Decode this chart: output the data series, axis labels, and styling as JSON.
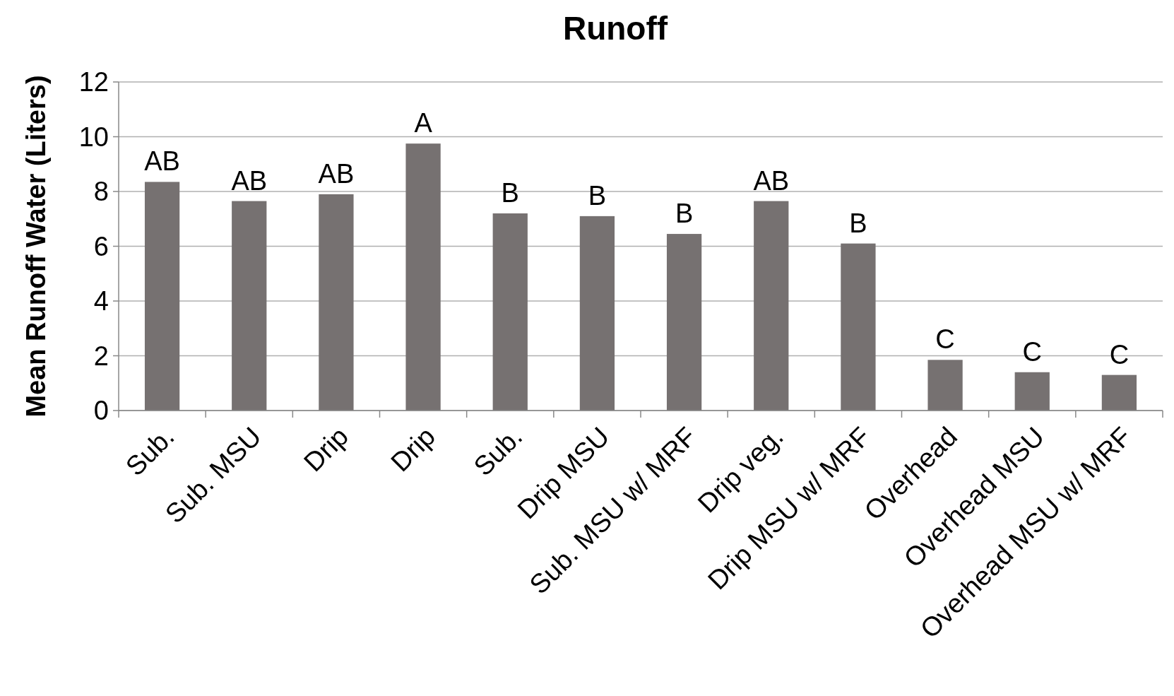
{
  "chart_data": {
    "type": "bar",
    "title": "Runoff",
    "ylabel": "Mean Runoff Water (Liters)",
    "categories": [
      "Sub.",
      "Sub. MSU",
      "Drip",
      "Drip",
      "Sub.",
      "Drip MSU",
      "Sub. MSU w/ MRF",
      "Drip veg.",
      "Drip MSU w/ MRF",
      "Overhead",
      "Overhead MSU",
      "Overhead MSU w/ MRF"
    ],
    "values": [
      8.35,
      7.65,
      7.9,
      9.75,
      7.2,
      7.1,
      6.45,
      7.65,
      6.1,
      1.85,
      1.4,
      1.3
    ],
    "value_labels": [
      "AB",
      "AB",
      "AB",
      "A",
      "B",
      "B",
      "B",
      "AB",
      "B",
      "C",
      "C",
      "C"
    ],
    "color": "#767171",
    "ylim": [
      0,
      12
    ],
    "yticks": [
      0,
      2,
      4,
      6,
      8,
      10,
      12
    ],
    "grid": "y"
  }
}
